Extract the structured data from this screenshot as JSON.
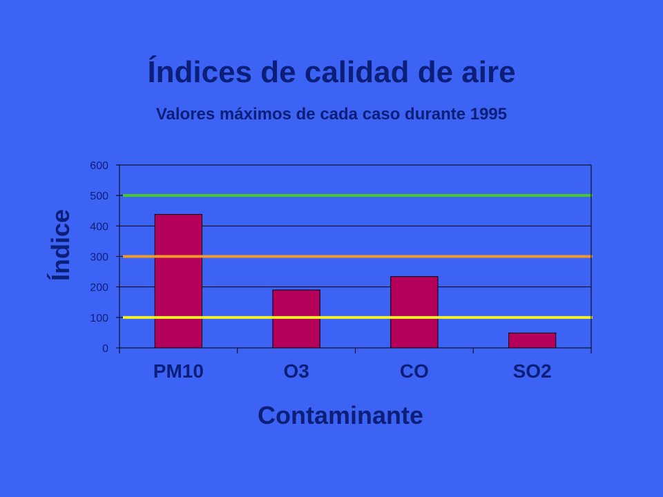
{
  "chart_data": {
    "type": "bar",
    "title": "Índices de calidad de aire",
    "subtitle": "Valores máximos de cada caso durante 1995",
    "xlabel": "Contaminante",
    "ylabel": "Índice",
    "categories": [
      "PM10",
      "O3",
      "CO",
      "SO2"
    ],
    "values": [
      438,
      190,
      234,
      49
    ],
    "ylim": [
      0,
      600
    ],
    "yticks": [
      0,
      100,
      200,
      300,
      400,
      500,
      600
    ],
    "grid": true,
    "legend": "none",
    "bar_color": "#b5005b",
    "reference_lines": [
      {
        "value": 500,
        "color": "#4cc82a"
      },
      {
        "value": 300,
        "color": "#f09a2a"
      },
      {
        "value": 100,
        "color": "#f2f02a"
      }
    ]
  }
}
